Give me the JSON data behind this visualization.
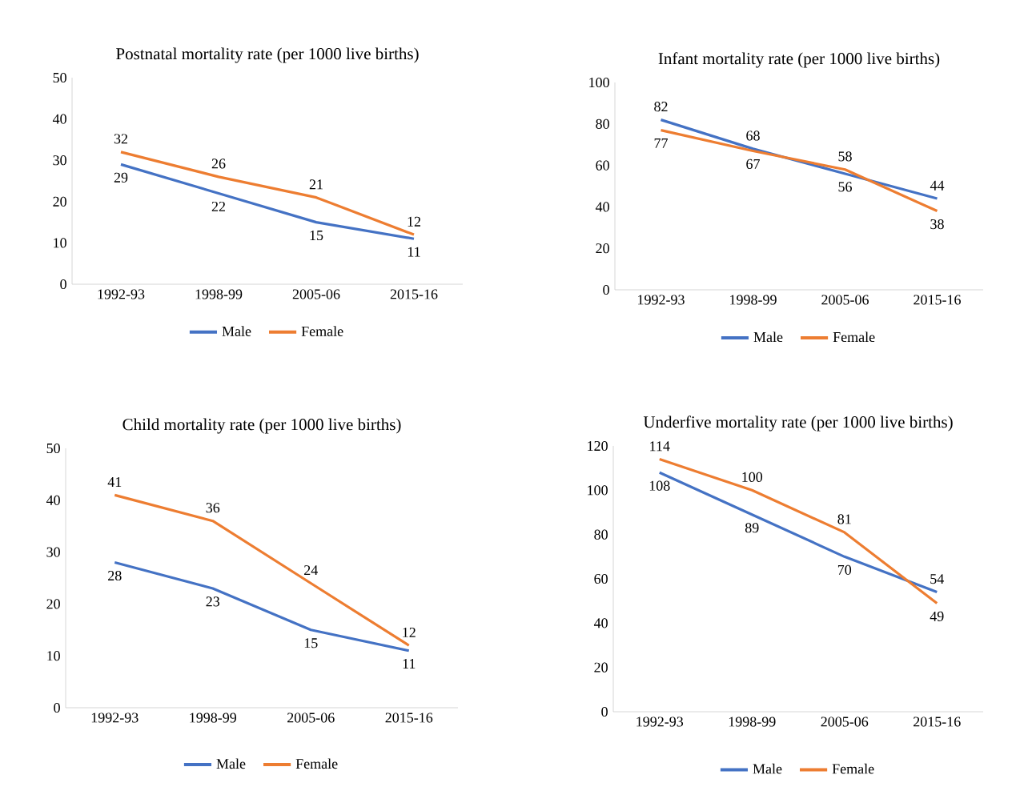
{
  "chart_data": [
    {
      "type": "line",
      "title": "Postnatal mortality rate (per 1000 live births)",
      "categories": [
        "1992-93",
        "1998-99",
        "2005-06",
        "2015-16"
      ],
      "ylim": [
        0,
        50
      ],
      "yticks": [
        0,
        10,
        20,
        30,
        40,
        50
      ],
      "data_labels": true,
      "legend": "bottom",
      "series": [
        {
          "name": "Male",
          "color": "#4472c4",
          "values": [
            29,
            22,
            15,
            11
          ]
        },
        {
          "name": "Female",
          "color": "#ed7d31",
          "values": [
            32,
            26,
            21,
            12
          ]
        }
      ]
    },
    {
      "type": "line",
      "title": "Infant mortality rate (per 1000 live births)",
      "categories": [
        "1992-93",
        "1998-99",
        "2005-06",
        "2015-16"
      ],
      "ylim": [
        0,
        100
      ],
      "yticks": [
        0,
        20,
        40,
        60,
        80,
        100
      ],
      "data_labels": true,
      "legend": "bottom",
      "series": [
        {
          "name": "Male",
          "color": "#4472c4",
          "values": [
            82,
            68,
            56,
            44
          ]
        },
        {
          "name": "Female",
          "color": "#ed7d31",
          "values": [
            77,
            67,
            58,
            38
          ]
        }
      ]
    },
    {
      "type": "line",
      "title": "Child mortality rate (per 1000 live births)",
      "categories": [
        "1992-93",
        "1998-99",
        "2005-06",
        "2015-16"
      ],
      "ylim": [
        0,
        50
      ],
      "yticks": [
        0,
        10,
        20,
        30,
        40,
        50
      ],
      "data_labels": true,
      "legend": "bottom",
      "series": [
        {
          "name": "Male",
          "color": "#4472c4",
          "values": [
            28,
            23,
            15,
            11
          ]
        },
        {
          "name": "Female",
          "color": "#ed7d31",
          "values": [
            41,
            36,
            24,
            12
          ]
        }
      ]
    },
    {
      "type": "line",
      "title": "Underfive mortality rate (per 1000 live births)",
      "categories": [
        "1992-93",
        "1998-99",
        "2005-06",
        "2015-16"
      ],
      "ylim": [
        0,
        120
      ],
      "yticks": [
        0,
        20,
        40,
        60,
        80,
        100,
        120
      ],
      "data_labels": true,
      "legend": "bottom",
      "series": [
        {
          "name": "Male",
          "color": "#4472c4",
          "values": [
            108,
            89,
            70,
            54
          ]
        },
        {
          "name": "Female",
          "color": "#ed7d31",
          "values": [
            114,
            100,
            81,
            49
          ]
        }
      ]
    }
  ]
}
